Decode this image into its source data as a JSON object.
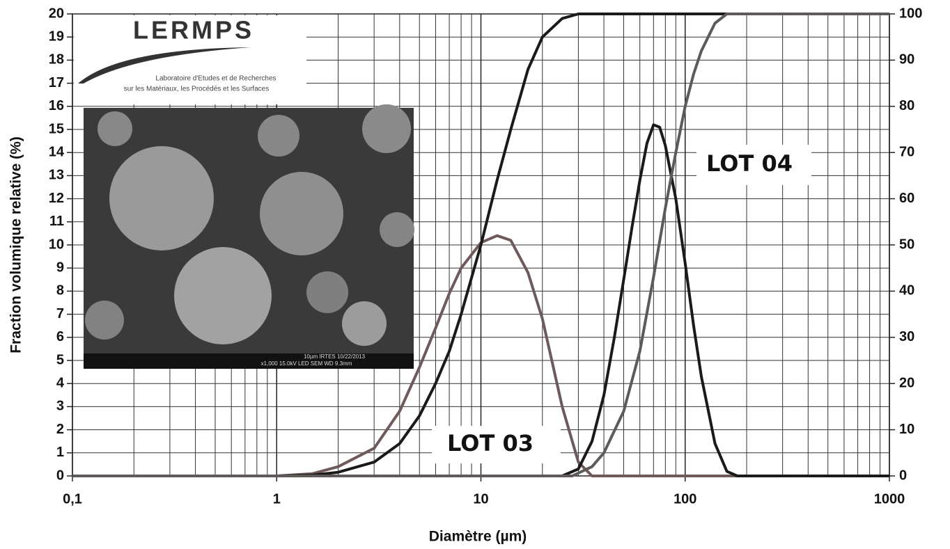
{
  "chart_data": {
    "type": "line",
    "xlabel": "Diamètre (µm)",
    "ylabel": "Fraction volumique relative (%)",
    "xscale": "log",
    "grid": true,
    "xlim": [
      0.1,
      1000
    ],
    "xticks": [
      {
        "value": 0.1,
        "label": "0,1"
      },
      1,
      10,
      100,
      1000
    ],
    "xminor": [
      0.2,
      0.3,
      0.4,
      0.5,
      0.6,
      0.7,
      0.8,
      0.9,
      2,
      3,
      4,
      5,
      6,
      7,
      8,
      9,
      20,
      30,
      40,
      50,
      60,
      70,
      80,
      90,
      200,
      300,
      400,
      500,
      600,
      700,
      800,
      900
    ],
    "ylim": [
      0,
      20
    ],
    "yticks": [
      0,
      1,
      2,
      3,
      4,
      5,
      6,
      7,
      8,
      9,
      10,
      11,
      12,
      13,
      14,
      15,
      16,
      17,
      18,
      19,
      20
    ],
    "y2lim": [
      0,
      100
    ],
    "y2ticks": [
      0,
      10,
      20,
      30,
      40,
      50,
      60,
      70,
      80,
      90,
      100
    ],
    "series": [
      {
        "color": "#6e5a5a",
        "axis": "y",
        "x": [
          0.1,
          1,
          1.5,
          2,
          3,
          4,
          5,
          6,
          7,
          8,
          10,
          12,
          14,
          17,
          20,
          25,
          30,
          35,
          1000
        ],
        "values": [
          0,
          0,
          0.1,
          0.4,
          1.2,
          2.8,
          4.7,
          6.4,
          7.9,
          9.0,
          10.1,
          10.4,
          10.2,
          8.8,
          6.8,
          3.0,
          0.6,
          0,
          0
        ]
      },
      {
        "color": "#1a1a1a",
        "axis": "y2",
        "x": [
          0.1,
          1,
          1.5,
          2,
          3,
          4,
          5,
          6,
          7,
          8,
          10,
          12,
          14,
          17,
          20,
          25,
          30,
          1000
        ],
        "values": [
          0,
          0,
          0.2,
          0.8,
          3,
          7,
          13,
          20,
          27,
          35,
          50,
          64,
          75,
          88,
          95,
          99,
          100,
          100
        ]
      },
      {
        "color": "#1a1a1a",
        "axis": "y",
        "x": [
          0.1,
          25,
          30,
          35,
          40,
          45,
          50,
          55,
          60,
          65,
          70,
          75,
          80,
          90,
          100,
          110,
          120,
          140,
          160,
          180,
          1000
        ],
        "values": [
          0,
          0,
          0.3,
          1.5,
          3.5,
          6,
          8.5,
          10.8,
          12.8,
          14.4,
          15.2,
          15.1,
          14.3,
          12,
          9.2,
          6.5,
          4.3,
          1.4,
          0.2,
          0,
          0
        ]
      },
      {
        "color": "#5e5a5a",
        "axis": "y2",
        "x": [
          0.1,
          28,
          35,
          40,
          50,
          60,
          70,
          80,
          90,
          100,
          110,
          120,
          140,
          160,
          1000
        ],
        "values": [
          0,
          0,
          2,
          5,
          14,
          27,
          43,
          58,
          70,
          80,
          87,
          92,
          98,
          100,
          100
        ]
      }
    ],
    "annotations": [
      "LOT 03",
      "LOT 04"
    ],
    "logo": {
      "name": "LERMPS",
      "line1": "Laboratoire d'Etudes et de Recherches",
      "line2": "sur les Matériaux, les Procédés et les Surfaces"
    },
    "inset_caption": [
      "10µm IRTES 10/22/2013",
      "x1,000 15.0kV LED SEM WD 9.3mm"
    ]
  }
}
